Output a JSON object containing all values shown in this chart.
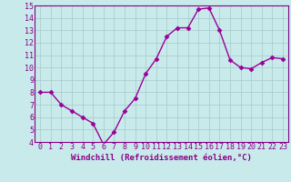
{
  "x": [
    0,
    1,
    2,
    3,
    4,
    5,
    6,
    7,
    8,
    9,
    10,
    11,
    12,
    13,
    14,
    15,
    16,
    17,
    18,
    19,
    20,
    21,
    22,
    23
  ],
  "y": [
    8.0,
    8.0,
    7.0,
    6.5,
    6.0,
    5.5,
    3.8,
    4.8,
    6.5,
    7.5,
    9.5,
    10.7,
    12.5,
    13.2,
    13.2,
    14.7,
    14.8,
    13.0,
    10.6,
    10.0,
    9.9,
    10.4,
    10.8,
    10.7
  ],
  "line_color": "#990099",
  "marker": "D",
  "marker_size": 2.5,
  "bg_color": "#c8eaea",
  "grid_color": "#a8c8c8",
  "xlabel": "Windchill (Refroidissement éolien,°C)",
  "ylabel": "",
  "ylim": [
    4,
    15
  ],
  "xlim_min": -0.5,
  "xlim_max": 23.5,
  "yticks": [
    4,
    5,
    6,
    7,
    8,
    9,
    10,
    11,
    12,
    13,
    14,
    15
  ],
  "xticks": [
    0,
    1,
    2,
    3,
    4,
    5,
    6,
    7,
    8,
    9,
    10,
    11,
    12,
    13,
    14,
    15,
    16,
    17,
    18,
    19,
    20,
    21,
    22,
    23
  ],
  "tick_label_color": "#880088",
  "xlabel_color": "#880088",
  "xlabel_fontsize": 6.5,
  "tick_fontsize": 6,
  "spine_color": "#880088",
  "axis_bg": "#c8eaea",
  "linewidth": 1.0
}
